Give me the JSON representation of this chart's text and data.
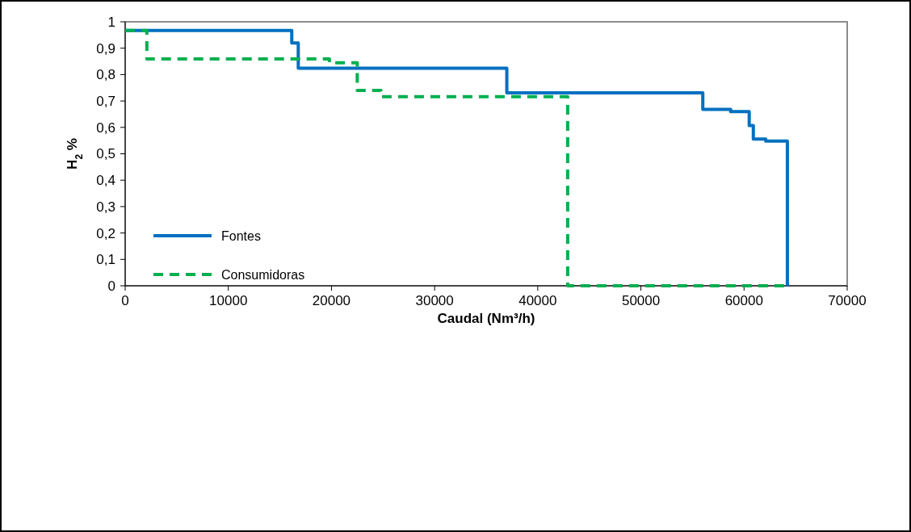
{
  "chart_data": {
    "type": "step",
    "xlabel": "Caudal (Nm³/h)",
    "ylabel": "H$_{2}$ %",
    "xlim": [
      0,
      70000
    ],
    "xticks": [
      0,
      10000,
      20000,
      30000,
      40000,
      50000,
      60000,
      70000
    ],
    "ylim": [
      0,
      1
    ],
    "yticks": [
      0,
      {
        "value": 0.1,
        "label": "0,1"
      },
      {
        "value": 0.2,
        "label": "0,2"
      },
      {
        "value": 0.3,
        "label": "0,3"
      },
      {
        "value": 0.4,
        "label": "0,4"
      },
      {
        "value": 0.5,
        "label": "0,5"
      },
      {
        "value": 0.6,
        "label": "0,6"
      },
      {
        "value": 0.7,
        "label": "0,7"
      },
      {
        "value": 0.8,
        "label": "0,8"
      },
      {
        "value": 0.9,
        "label": "0,9"
      },
      1
    ],
    "grid": false,
    "legend": "left",
    "marker": "none",
    "series": [
      {
        "name": "Fontes",
        "color": "#0070c0",
        "line_style": "solid",
        "x": [
          0,
          16150,
          16780,
          37000,
          56000,
          58700,
          60500,
          60900,
          62100,
          64200
        ],
        "values": [
          0.967,
          0.92,
          0.824,
          0.731,
          0.668,
          0.66,
          0.607,
          0.556,
          0.548,
          0
        ]
      },
      {
        "name": "Consumidoras",
        "color": "#00b050",
        "line_style": "dashed",
        "x": [
          0,
          2100,
          19800,
          22500,
          24800,
          42900,
          64200
        ],
        "values": [
          0.967,
          0.859,
          0.845,
          0.74,
          0.716,
          0,
          0
        ]
      }
    ]
  }
}
